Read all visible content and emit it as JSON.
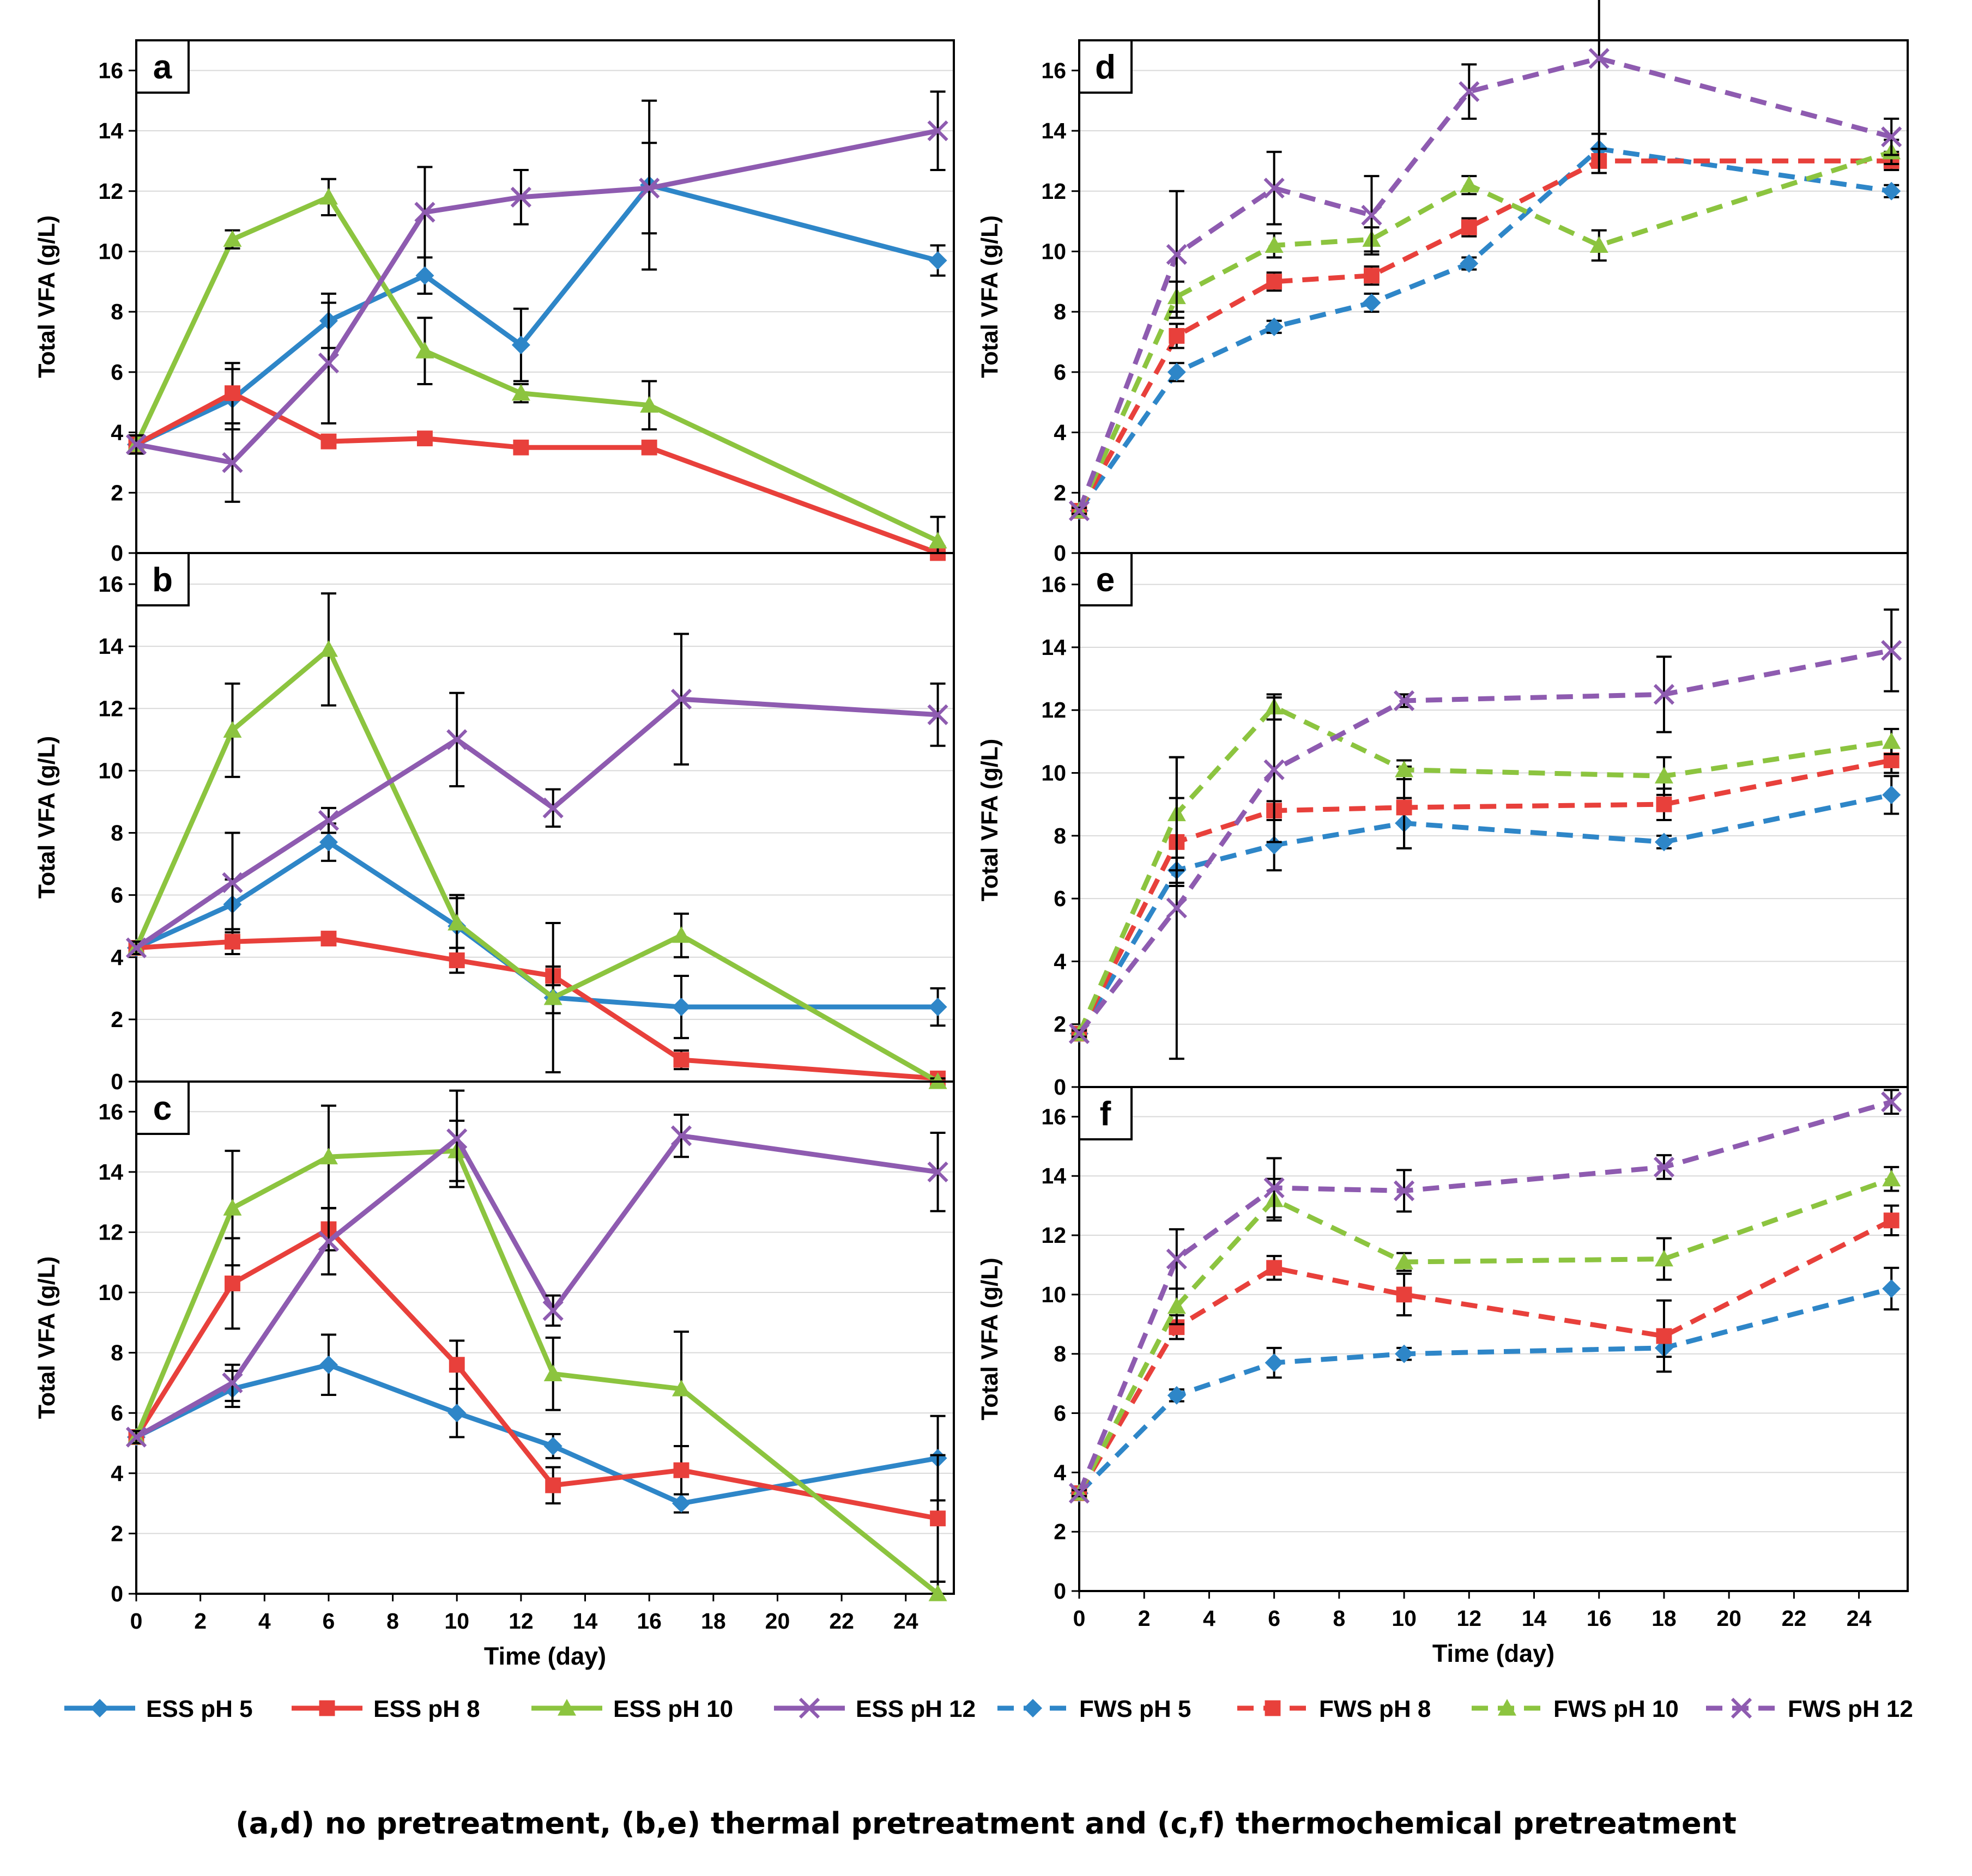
{
  "caption": "(a,d) no pretreatment, (b,e) thermal pretreatment and (c,f) thermochemical pretreatment",
  "colors": {
    "pH5": "#2E86C8",
    "pH8": "#E8403B",
    "pH10": "#8CC43F",
    "pH12": "#8E5BB0",
    "errorbar": "#000000",
    "grid": "#D9D9D9"
  },
  "legend": [
    {
      "label": "ESS pH 5",
      "color": "#2E86C8",
      "marker": "diamond",
      "dashed": false
    },
    {
      "label": "ESS pH 8",
      "color": "#E8403B",
      "marker": "square",
      "dashed": false
    },
    {
      "label": "ESS pH 10",
      "color": "#8CC43F",
      "marker": "triangle",
      "dashed": false
    },
    {
      "label": "ESS pH 12",
      "color": "#8E5BB0",
      "marker": "x",
      "dashed": false
    },
    {
      "label": "FWS pH 5",
      "color": "#2E86C8",
      "marker": "diamond",
      "dashed": true
    },
    {
      "label": "FWS pH 8",
      "color": "#E8403B",
      "marker": "square",
      "dashed": true
    },
    {
      "label": "FWS pH 10",
      "color": "#8CC43F",
      "marker": "triangle",
      "dashed": true
    },
    {
      "label": "FWS pH 12",
      "color": "#8E5BB0",
      "marker": "x",
      "dashed": true
    }
  ],
  "chart_data": [
    {
      "id": "a",
      "label": "a",
      "type": "line",
      "ylabel": "Total VFA (g/L)",
      "xlabel": "",
      "xlim": [
        0,
        25.5
      ],
      "ylim": [
        0,
        17
      ],
      "yticks": [
        0,
        2,
        4,
        6,
        8,
        10,
        12,
        14,
        16
      ],
      "xticks": [],
      "show_x_ticklabels": false,
      "series": [
        {
          "name": "ESS pH 5",
          "color": "#2E86C8",
          "marker": "diamond",
          "dashed": false,
          "x": [
            0,
            3,
            6,
            9,
            12,
            16,
            25
          ],
          "y": [
            3.6,
            5.1,
            7.7,
            9.2,
            6.9,
            12.2,
            9.7
          ],
          "err": [
            0.3,
            1.0,
            0.9,
            0.6,
            1.2,
            2.8,
            0.5
          ]
        },
        {
          "name": "ESS pH 8",
          "color": "#E8403B",
          "marker": "square",
          "dashed": false,
          "x": [
            0,
            3,
            6,
            9,
            12,
            16,
            25
          ],
          "y": [
            3.6,
            5.3,
            3.7,
            3.8,
            3.5,
            3.5,
            0.0
          ],
          "err": [
            0.3,
            1.0,
            0,
            0,
            0,
            0,
            0
          ]
        },
        {
          "name": "ESS pH 10",
          "color": "#8CC43F",
          "marker": "triangle",
          "dashed": false,
          "x": [
            0,
            3,
            6,
            9,
            12,
            16,
            25
          ],
          "y": [
            3.6,
            10.4,
            11.8,
            6.7,
            5.3,
            4.9,
            0.4
          ],
          "err": [
            0.3,
            0.3,
            0.6,
            1.1,
            0.3,
            0.8,
            0.8
          ]
        },
        {
          "name": "ESS pH 12",
          "color": "#8E5BB0",
          "marker": "x",
          "dashed": false,
          "x": [
            0,
            3,
            6,
            9,
            12,
            16,
            25
          ],
          "y": [
            3.6,
            3.0,
            6.3,
            11.3,
            11.8,
            12.1,
            14.0
          ],
          "err": [
            0.3,
            1.3,
            2.0,
            1.5,
            0.9,
            1.5,
            1.3
          ]
        }
      ]
    },
    {
      "id": "b",
      "label": "b",
      "type": "line",
      "ylabel": "Total VFA (g/L)",
      "xlabel": "",
      "xlim": [
        0,
        25.5
      ],
      "ylim": [
        0,
        17
      ],
      "yticks": [
        0,
        2,
        4,
        6,
        8,
        10,
        12,
        14,
        16
      ],
      "xticks": [],
      "show_x_ticklabels": false,
      "series": [
        {
          "name": "ESS pH 5",
          "color": "#2E86C8",
          "marker": "diamond",
          "dashed": false,
          "x": [
            0,
            3,
            6,
            10,
            13,
            17,
            25
          ],
          "y": [
            4.3,
            5.7,
            7.7,
            5.0,
            2.7,
            2.4,
            2.4
          ],
          "err": [
            0.2,
            0.8,
            0.6,
            1.0,
            0.5,
            1.0,
            0.6
          ]
        },
        {
          "name": "ESS pH 8",
          "color": "#E8403B",
          "marker": "square",
          "dashed": false,
          "x": [
            0,
            3,
            6,
            10,
            13,
            17,
            25
          ],
          "y": [
            4.3,
            4.5,
            4.6,
            3.9,
            3.4,
            0.7,
            0.1
          ],
          "err": [
            0.2,
            0.4,
            0.2,
            0.4,
            0.3,
            0.3,
            0.1
          ]
        },
        {
          "name": "ESS pH 10",
          "color": "#8CC43F",
          "marker": "triangle",
          "dashed": false,
          "x": [
            0,
            3,
            6,
            10,
            13,
            17,
            25
          ],
          "y": [
            4.3,
            11.3,
            13.9,
            5.1,
            2.7,
            4.7,
            0.0
          ],
          "err": [
            0.2,
            1.5,
            1.8,
            0.8,
            2.4,
            0.7,
            0.1
          ]
        },
        {
          "name": "ESS pH 12",
          "color": "#8E5BB0",
          "marker": "x",
          "dashed": false,
          "x": [
            0,
            3,
            6,
            10,
            13,
            17,
            25
          ],
          "y": [
            4.3,
            6.4,
            8.4,
            11.0,
            8.8,
            12.3,
            11.8
          ],
          "err": [
            0.2,
            1.6,
            0.4,
            1.5,
            0.6,
            2.1,
            1.0
          ]
        }
      ]
    },
    {
      "id": "c",
      "label": "c",
      "type": "line",
      "ylabel": "Total VFA (g/L)",
      "xlabel": "Time (day)",
      "xlim": [
        0,
        25.5
      ],
      "ylim": [
        0,
        17
      ],
      "yticks": [
        0,
        2,
        4,
        6,
        8,
        10,
        12,
        14,
        16
      ],
      "xticks": [
        0,
        2,
        4,
        6,
        8,
        10,
        12,
        14,
        16,
        18,
        20,
        22,
        24
      ],
      "show_x_ticklabels": true,
      "series": [
        {
          "name": "ESS pH 5",
          "color": "#2E86C8",
          "marker": "diamond",
          "dashed": false,
          "x": [
            0,
            3,
            6,
            10,
            13,
            17,
            25
          ],
          "y": [
            5.2,
            6.8,
            7.6,
            6.0,
            4.9,
            3.0,
            4.5
          ],
          "err": [
            0.2,
            0.6,
            1.0,
            0.8,
            0.4,
            0.3,
            1.4
          ]
        },
        {
          "name": "ESS pH 8",
          "color": "#E8403B",
          "marker": "square",
          "dashed": false,
          "x": [
            0,
            3,
            6,
            10,
            13,
            17,
            25
          ],
          "y": [
            5.2,
            10.3,
            12.1,
            7.6,
            3.6,
            4.1,
            2.5
          ],
          "err": [
            0.2,
            1.5,
            0.7,
            0.8,
            0.6,
            0.8,
            2.1
          ]
        },
        {
          "name": "ESS pH 10",
          "color": "#8CC43F",
          "marker": "triangle",
          "dashed": false,
          "x": [
            0,
            3,
            6,
            10,
            13,
            17,
            25
          ],
          "y": [
            5.2,
            12.8,
            14.5,
            14.7,
            7.3,
            6.8,
            0.0
          ],
          "err": [
            0.2,
            1.9,
            1.7,
            1.0,
            1.2,
            1.9,
            0.4
          ]
        },
        {
          "name": "ESS pH 12",
          "color": "#8E5BB0",
          "marker": "x",
          "dashed": false,
          "x": [
            0,
            3,
            6,
            10,
            13,
            17,
            25
          ],
          "y": [
            5.2,
            7.0,
            11.7,
            15.1,
            9.4,
            15.2,
            14.0
          ],
          "err": [
            0.2,
            0.6,
            1.1,
            1.6,
            0.5,
            0.7,
            1.3
          ]
        }
      ]
    },
    {
      "id": "d",
      "label": "d",
      "type": "line",
      "ylabel": "Total VFA (g/L)",
      "xlabel": "",
      "xlim": [
        0,
        25.5
      ],
      "ylim": [
        0,
        17
      ],
      "yticks": [
        0,
        2,
        4,
        6,
        8,
        10,
        12,
        14,
        16
      ],
      "xticks": [],
      "show_x_ticklabels": false,
      "series": [
        {
          "name": "FWS pH 5",
          "color": "#2E86C8",
          "marker": "diamond",
          "dashed": true,
          "x": [
            0,
            3,
            6,
            9,
            12,
            16,
            25
          ],
          "y": [
            1.4,
            6.0,
            7.5,
            8.3,
            9.6,
            13.4,
            12.0
          ],
          "err": [
            0.1,
            0.3,
            0.2,
            0.3,
            0.2,
            0.5,
            0.2
          ]
        },
        {
          "name": "FWS pH 8",
          "color": "#E8403B",
          "marker": "square",
          "dashed": true,
          "x": [
            0,
            3,
            6,
            9,
            12,
            16,
            25
          ],
          "y": [
            1.4,
            7.2,
            9.0,
            9.2,
            10.8,
            13.0,
            13.0
          ],
          "err": [
            0.1,
            0.4,
            0.3,
            0.3,
            0.3,
            0.4,
            0.3
          ]
        },
        {
          "name": "FWS pH 10",
          "color": "#8CC43F",
          "marker": "triangle",
          "dashed": true,
          "x": [
            0,
            3,
            6,
            9,
            12,
            16,
            25
          ],
          "y": [
            1.4,
            8.5,
            10.2,
            10.4,
            12.2,
            10.2,
            13.3
          ],
          "err": [
            0.1,
            0.5,
            0.4,
            0.4,
            0.3,
            0.5,
            0.4
          ]
        },
        {
          "name": "FWS pH 12",
          "color": "#8E5BB0",
          "marker": "x",
          "dashed": true,
          "x": [
            0,
            3,
            6,
            9,
            12,
            16,
            25
          ],
          "y": [
            1.4,
            9.9,
            12.1,
            11.2,
            15.3,
            16.4,
            13.8
          ],
          "err": [
            0.1,
            2.1,
            1.2,
            1.3,
            0.9,
            3.8,
            0.6
          ]
        }
      ]
    },
    {
      "id": "e",
      "label": "e",
      "type": "line",
      "ylabel": "Total VFA (g/L)",
      "xlabel": "",
      "xlim": [
        0,
        25.5
      ],
      "ylim": [
        0,
        17
      ],
      "yticks": [
        0,
        2,
        4,
        6,
        8,
        10,
        12,
        14,
        16
      ],
      "xticks": [],
      "show_x_ticklabels": false,
      "series": [
        {
          "name": "FWS pH 5",
          "color": "#2E86C8",
          "marker": "diamond",
          "dashed": true,
          "x": [
            0,
            3,
            6,
            10,
            18,
            25
          ],
          "y": [
            1.7,
            6.9,
            7.7,
            8.4,
            7.8,
            9.3
          ],
          "err": [
            0.1,
            0.4,
            0.8,
            0.8,
            0.2,
            0.6
          ]
        },
        {
          "name": "FWS pH 8",
          "color": "#E8403B",
          "marker": "square",
          "dashed": true,
          "x": [
            0,
            3,
            6,
            10,
            18,
            25
          ],
          "y": [
            1.7,
            7.8,
            8.8,
            8.9,
            9.0,
            10.4
          ],
          "err": [
            0.1,
            1.4,
            0.3,
            1.3,
            0.5,
            0.4
          ]
        },
        {
          "name": "FWS pH 10",
          "color": "#8CC43F",
          "marker": "triangle",
          "dashed": true,
          "x": [
            0,
            3,
            6,
            10,
            18,
            25
          ],
          "y": [
            1.7,
            8.7,
            12.1,
            10.1,
            9.9,
            11.0
          ],
          "err": [
            0.1,
            1.8,
            0.4,
            0.3,
            0.6,
            0.4
          ]
        },
        {
          "name": "FWS pH 12",
          "color": "#8E5BB0",
          "marker": "x",
          "dashed": true,
          "x": [
            0,
            3,
            6,
            10,
            18,
            25
          ],
          "y": [
            1.7,
            5.7,
            10.1,
            12.3,
            12.5,
            13.9
          ],
          "err": [
            0.1,
            4.8,
            2.3,
            0.2,
            1.2,
            1.3
          ]
        }
      ]
    },
    {
      "id": "f",
      "label": "f",
      "type": "line",
      "ylabel": "Total VFA (g/L)",
      "xlabel": "Time (day)",
      "xlim": [
        0,
        25.5
      ],
      "ylim": [
        0,
        17
      ],
      "yticks": [
        0,
        2,
        4,
        6,
        8,
        10,
        12,
        14,
        16
      ],
      "xticks": [
        0,
        2,
        4,
        6,
        8,
        10,
        12,
        14,
        16,
        18,
        20,
        22,
        24
      ],
      "show_x_ticklabels": true,
      "series": [
        {
          "name": "FWS pH 5",
          "color": "#2E86C8",
          "marker": "diamond",
          "dashed": true,
          "x": [
            0,
            3,
            6,
            10,
            18,
            25
          ],
          "y": [
            3.3,
            6.6,
            7.7,
            8.0,
            8.2,
            10.2
          ],
          "err": [
            0.1,
            0.2,
            0.5,
            0.2,
            0.3,
            0.7
          ]
        },
        {
          "name": "FWS pH 8",
          "color": "#E8403B",
          "marker": "square",
          "dashed": true,
          "x": [
            0,
            3,
            6,
            10,
            18,
            25
          ],
          "y": [
            3.3,
            8.9,
            10.9,
            10.0,
            8.6,
            12.5
          ],
          "err": [
            0.1,
            0.4,
            0.4,
            0.7,
            1.2,
            0.5
          ]
        },
        {
          "name": "FWS pH 10",
          "color": "#8CC43F",
          "marker": "triangle",
          "dashed": true,
          "x": [
            0,
            3,
            6,
            10,
            18,
            25
          ],
          "y": [
            3.3,
            9.6,
            13.2,
            11.1,
            11.2,
            13.9
          ],
          "err": [
            0.1,
            0.6,
            0.7,
            0.3,
            0.7,
            0.4
          ]
        },
        {
          "name": "FWS pH 12",
          "color": "#8E5BB0",
          "marker": "x",
          "dashed": true,
          "x": [
            0,
            3,
            6,
            10,
            18,
            25
          ],
          "y": [
            3.3,
            11.2,
            13.6,
            13.5,
            14.3,
            16.5
          ],
          "err": [
            0.1,
            1.0,
            1.0,
            0.7,
            0.4,
            0.4
          ]
        }
      ]
    }
  ]
}
